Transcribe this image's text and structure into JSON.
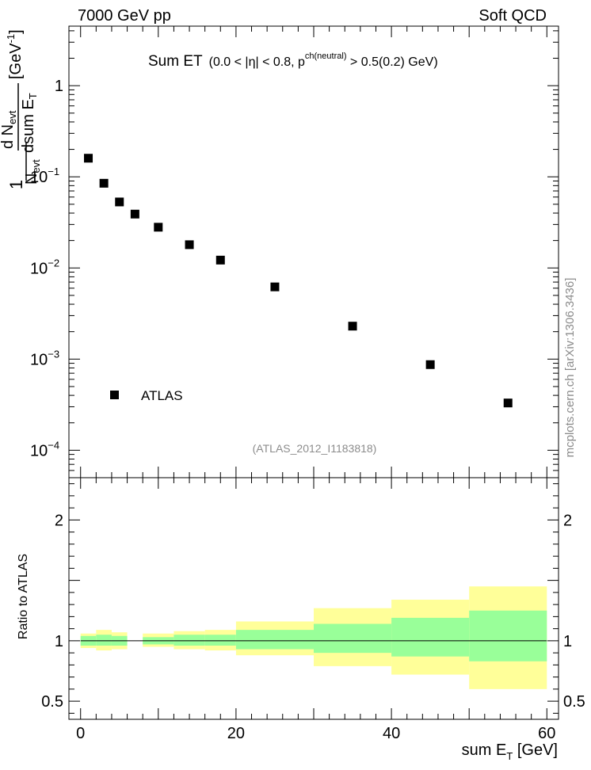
{
  "header": {
    "left": "7000 GeV pp",
    "right": "Soft QCD"
  },
  "side_label": "mcplots.cern.ch [arXiv:1306.3436]",
  "chart_data": [
    {
      "panel": "main",
      "type": "scatter",
      "title": "Sum ET",
      "title_selection": "(0.0 < |η| < 0.8, p",
      "title_superscript": "ch(neutral)",
      "title_selection_tail": " > 0.5(0.2) GeV)",
      "watermark": "(ATLAS_2012_I1183818)",
      "y_scale": "log",
      "xlim": [
        -1.5,
        61.5
      ],
      "ylim": [
        5e-05,
        4.5
      ],
      "ylabel_parts": {
        "one": "1",
        "dN": "d N",
        "evt": "evt",
        "N": "N",
        "dsum": "dsum E",
        "T": "T",
        "unit": "[GeV",
        "unit_exp": "-1",
        "unit_close": "]"
      },
      "y_ticks": [
        {
          "value": 1,
          "base": "1",
          "exp": ""
        },
        {
          "value": 0.1,
          "base": "10",
          "exp": "−1"
        },
        {
          "value": 0.01,
          "base": "10",
          "exp": "−2"
        },
        {
          "value": 0.001,
          "base": "10",
          "exp": "−3"
        },
        {
          "value": 0.0001,
          "base": "10",
          "exp": "−4"
        }
      ],
      "legend": {
        "position": "lower-left",
        "entries": [
          "ATLAS"
        ]
      },
      "series": [
        {
          "name": "ATLAS",
          "marker": "square",
          "color": "#000000",
          "x": [
            1,
            3,
            5,
            7,
            10,
            14,
            18,
            25,
            35,
            45,
            55
          ],
          "y": [
            0.16,
            0.085,
            0.053,
            0.039,
            0.028,
            0.018,
            0.0122,
            0.0062,
            0.0023,
            0.00087,
            0.00033
          ]
        }
      ]
    },
    {
      "panel": "ratio",
      "type": "area",
      "ylabel": "Ratio to ATLAS",
      "xlabel_base": "sum E",
      "xlabel_sub": "T",
      "xlabel_unit": " [GeV]",
      "xlim": [
        -1.5,
        61.5
      ],
      "ylim": [
        0.35,
        2.35
      ],
      "reference_line": 1,
      "x_ticks": [
        0,
        20,
        40,
        60
      ],
      "y_ticks": [
        0.5,
        1,
        2
      ],
      "colors": {
        "inner": "#99ff99",
        "outer": "#ffff99"
      },
      "bins": [
        {
          "x0": 0,
          "x1": 2,
          "inner": [
            0.96,
            1.04
          ],
          "outer": [
            0.94,
            1.06
          ]
        },
        {
          "x0": 2,
          "x1": 4,
          "inner": [
            0.96,
            1.05
          ],
          "outer": [
            0.92,
            1.09
          ]
        },
        {
          "x0": 4,
          "x1": 6,
          "inner": [
            0.96,
            1.04
          ],
          "outer": [
            0.93,
            1.07
          ]
        },
        {
          "x0": 8,
          "x1": 12,
          "inner": [
            0.97,
            1.03
          ],
          "outer": [
            0.95,
            1.06
          ]
        },
        {
          "x0": 12,
          "x1": 16,
          "inner": [
            0.96,
            1.05
          ],
          "outer": [
            0.93,
            1.08
          ]
        },
        {
          "x0": 16,
          "x1": 20,
          "inner": [
            0.96,
            1.05
          ],
          "outer": [
            0.92,
            1.09
          ]
        },
        {
          "x0": 20,
          "x1": 30,
          "inner": [
            0.93,
            1.09
          ],
          "outer": [
            0.88,
            1.16
          ]
        },
        {
          "x0": 30,
          "x1": 40,
          "inner": [
            0.9,
            1.14
          ],
          "outer": [
            0.79,
            1.27
          ]
        },
        {
          "x0": 40,
          "x1": 50,
          "inner": [
            0.87,
            1.19
          ],
          "outer": [
            0.72,
            1.34
          ]
        },
        {
          "x0": 50,
          "x1": 60,
          "inner": [
            0.83,
            1.25
          ],
          "outer": [
            0.6,
            1.45
          ]
        }
      ]
    }
  ]
}
